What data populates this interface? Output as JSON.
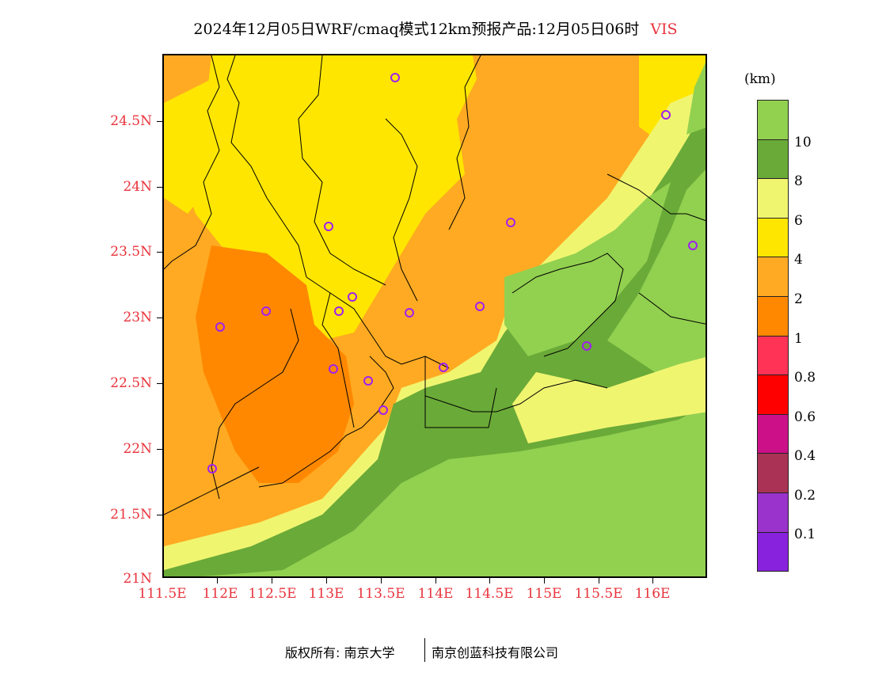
{
  "title": {
    "main": "2024年12月05日WRF/cmaq模式12km预报产品:12月05日06时",
    "variable": "VIS"
  },
  "map": {
    "lat_labels": [
      "24.5N",
      "24N",
      "23.5N",
      "23N",
      "22.5N",
      "22N",
      "21.5N",
      "21N"
    ],
    "lon_labels": [
      "111.5E",
      "112E",
      "112.5E",
      "113E",
      "113.5E",
      "114E",
      "114.5E",
      "115E",
      "115.5E",
      "116E"
    ],
    "station_marker_color": "#a020f0",
    "boundary_color": "#000000"
  },
  "legend": {
    "unit": "(km)",
    "labels": [
      "10",
      "8",
      "6",
      "4",
      "2",
      "1",
      "0.8",
      "0.6",
      "0.4",
      "0.2",
      "0.1"
    ],
    "colors": [
      "#92d050",
      "#6aaa38",
      "#f0f570",
      "#ffe600",
      "#ffaa22",
      "#ff8800",
      "#ff3355",
      "#ff0000",
      "#cc1188",
      "#aa3355",
      "#9933cc",
      "#8822dd"
    ]
  },
  "footer": {
    "left": "版权所有: 南京大学",
    "right": "南京创蓝科技有限公司"
  }
}
